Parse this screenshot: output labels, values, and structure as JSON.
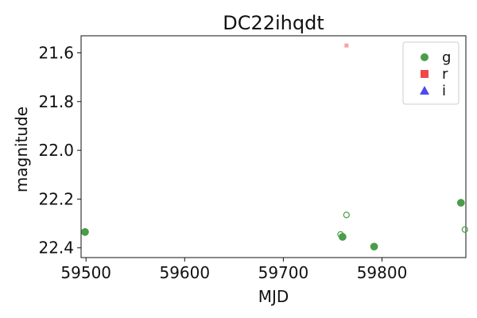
{
  "chart_data": {
    "type": "scatter",
    "title": "DC22ihqdt",
    "xlabel": "MJD",
    "ylabel": "magnitude",
    "xlim": [
      59495,
      59885
    ],
    "ylim": [
      22.44,
      21.53
    ],
    "y_inverted": true,
    "x_ticks": [
      59500,
      59600,
      59700,
      59800
    ],
    "y_ticks": [
      21.6,
      21.8,
      22.0,
      22.2,
      22.4
    ],
    "x_tick_labels": [
      "59500",
      "59600",
      "59700",
      "59800"
    ],
    "y_tick_labels": [
      "21.6",
      "21.8",
      "22.0",
      "22.2",
      "22.4"
    ],
    "grid": false,
    "legend": {
      "placement": "top-right",
      "entries": [
        {
          "label": "g",
          "marker": "circle",
          "color": "#4a9e4a"
        },
        {
          "label": "r",
          "marker": "square",
          "color": "#f04848"
        },
        {
          "label": "i",
          "marker": "triangle",
          "color": "#4a4af0"
        }
      ]
    },
    "series": [
      {
        "name": "g",
        "marker": "circle",
        "color": "#4a9e4a",
        "points": [
          {
            "x": 59499,
            "y": 22.335,
            "style": "filled"
          },
          {
            "x": 59760,
            "y": 22.355,
            "style": "filled"
          },
          {
            "x": 59792,
            "y": 22.395,
            "style": "filled"
          },
          {
            "x": 59880,
            "y": 22.215,
            "style": "filled"
          },
          {
            "x": 59758,
            "y": 22.345,
            "style": "open"
          },
          {
            "x": 59764,
            "y": 22.265,
            "style": "open"
          },
          {
            "x": 59884,
            "y": 22.325,
            "style": "open"
          }
        ]
      },
      {
        "name": "r",
        "marker": "square",
        "color": "#f04848",
        "points": [
          {
            "x": 59764,
            "y": 21.57,
            "style": "faint"
          }
        ]
      },
      {
        "name": "i",
        "marker": "triangle",
        "color": "#4a4af0",
        "points": []
      }
    ]
  }
}
